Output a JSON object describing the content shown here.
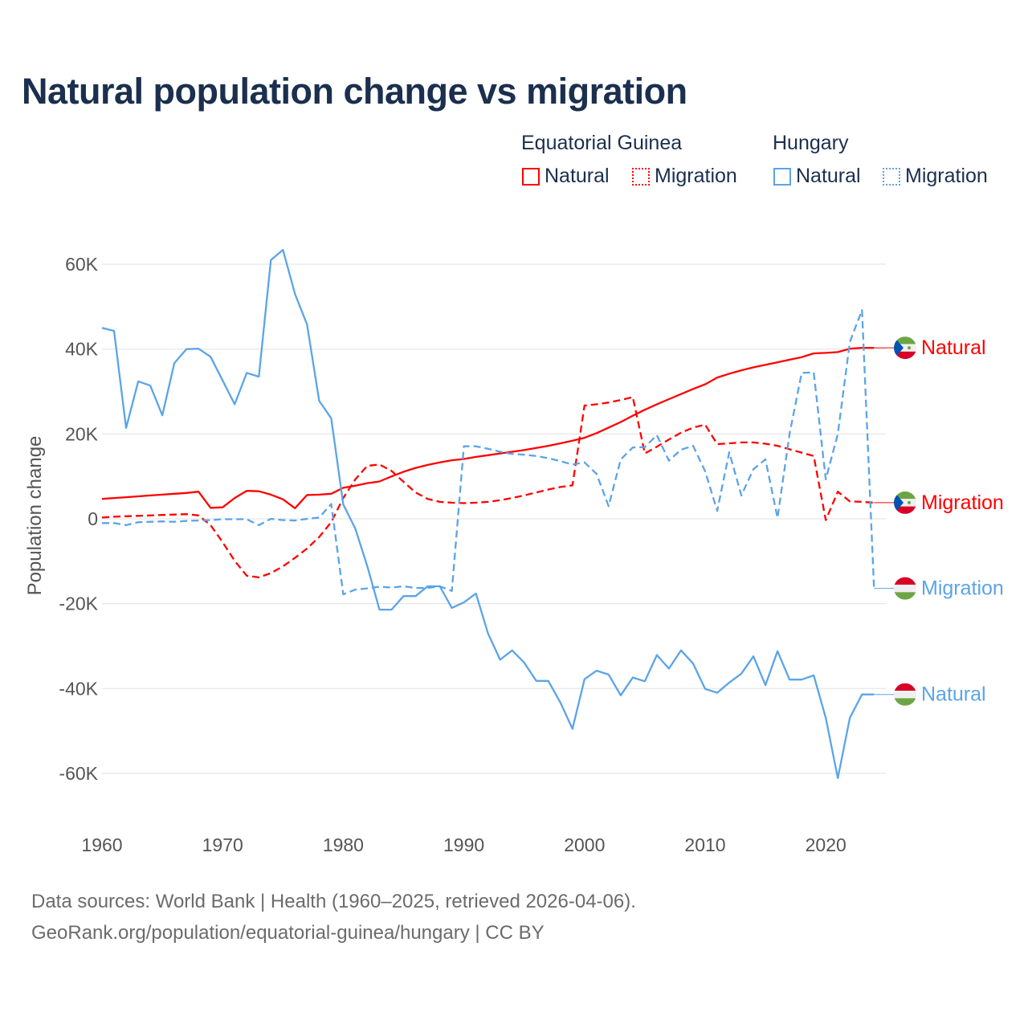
{
  "title": "Natural population change vs migration",
  "legend": {
    "groups": [
      {
        "country": "Equatorial Guinea",
        "items": [
          {
            "label": "Natural",
            "style": "solid",
            "color": "#ff0000"
          },
          {
            "label": "Migration",
            "style": "dotted",
            "color": "#ff0000"
          }
        ]
      },
      {
        "country": "Hungary",
        "items": [
          {
            "label": "Natural",
            "style": "solid",
            "color": "#5ba4e8"
          },
          {
            "label": "Migration",
            "style": "dotted",
            "color": "#5ba4e8"
          }
        ]
      }
    ]
  },
  "footer": {
    "line1": "Data sources: World Bank | Health (1960–2025, retrieved 2026-04-06).",
    "line2": "GeoRank.org/population/equatorial-guinea/hungary | CC BY"
  },
  "chart_data": {
    "type": "line",
    "title": "Natural population change vs migration",
    "xlabel": "",
    "ylabel": "Population change",
    "xlim": [
      1960,
      2025
    ],
    "ylim": [
      -70000,
      70000
    ],
    "x_ticks": [
      1960,
      1970,
      1980,
      1990,
      2000,
      2010,
      2020
    ],
    "x_tick_labels": [
      "1960",
      "1970",
      "1980",
      "1990",
      "2000",
      "2010",
      "2020"
    ],
    "y_ticks": [
      60000,
      40000,
      20000,
      0,
      -20000,
      -40000,
      -60000
    ],
    "y_tick_labels": [
      "60K",
      "40K",
      "20K",
      "0",
      "-20K",
      "-40K",
      "-60K"
    ],
    "grid": true,
    "legend_placement": "top-right",
    "x_start": 1960,
    "series": [
      {
        "name": "Equatorial Guinea Natural",
        "end_label": "Natural",
        "country": "equatorial-guinea",
        "color": "#ff0000",
        "dash": false,
        "values": [
          4.7,
          4.9,
          5.1,
          5.3,
          5.5,
          5.7,
          5.9,
          6.1,
          6.4,
          2.6,
          2.7,
          4.9,
          6.6,
          6.5,
          5.7,
          4.6,
          2.5,
          5.6,
          5.7,
          5.9,
          7.3,
          7.8,
          8.4,
          8.8,
          10.0,
          11.1,
          12.0,
          12.7,
          13.3,
          13.8,
          14.1,
          14.6,
          15.0,
          15.4,
          15.8,
          16.2,
          16.7,
          17.2,
          17.8,
          18.4,
          19.1,
          20.2,
          21.5,
          22.8,
          24.3,
          25.7,
          27.0,
          28.2,
          29.4,
          30.6,
          31.7,
          33.3,
          34.2,
          35.0,
          35.7,
          36.3,
          36.9,
          37.5,
          38.1,
          39.0,
          39.1,
          39.3,
          40.1,
          40.3,
          40.3
        ]
      },
      {
        "name": "Equatorial Guinea Migration",
        "end_label": "Migration",
        "country": "equatorial-guinea",
        "color": "#ff0000",
        "dash": true,
        "values": [
          0.3,
          0.5,
          0.6,
          0.7,
          0.8,
          0.9,
          1.0,
          1.1,
          0.8,
          -1.5,
          -5.5,
          -9.9,
          -13.4,
          -13.8,
          -12.8,
          -11.2,
          -9.2,
          -7.0,
          -4.3,
          -0.8,
          4.9,
          9.3,
          12.5,
          12.8,
          11.3,
          8.7,
          6.2,
          4.7,
          4.0,
          3.8,
          3.7,
          3.8,
          4.0,
          4.4,
          4.9,
          5.5,
          6.2,
          6.9,
          7.5,
          7.9,
          26.7,
          27.0,
          27.4,
          28.0,
          28.7,
          15.4,
          17.0,
          18.7,
          20.3,
          21.5,
          22.2,
          17.6,
          17.8,
          18.0,
          18.0,
          17.7,
          17.2,
          16.4,
          15.6,
          14.8,
          -0.3,
          6.4,
          4.1,
          4.0,
          3.8
        ]
      },
      {
        "name": "Hungary Migration",
        "end_label": "Migration",
        "country": "hungary",
        "color": "#5ba4e8",
        "dash": true,
        "values": [
          -1.0,
          -1.0,
          -1.5,
          -0.8,
          -0.7,
          -0.6,
          -0.7,
          -0.5,
          -0.4,
          -0.3,
          -0.1,
          -0.1,
          -0.1,
          -1.5,
          0.0,
          -0.3,
          -0.4,
          0.0,
          0.3,
          3.5,
          -17.8,
          -16.7,
          -16.4,
          -16.0,
          -16.2,
          -15.9,
          -16.3,
          -16.3,
          -15.9,
          -17.0,
          17.1,
          17.1,
          16.5,
          15.8,
          15.3,
          15.1,
          14.8,
          14.3,
          13.6,
          12.8,
          13.3,
          10.6,
          3.0,
          14.0,
          16.8,
          16.9,
          19.7,
          13.7,
          16.3,
          17.2,
          11.2,
          1.9,
          15.7,
          5.5,
          11.7,
          14.0,
          0.2,
          20.0,
          34.4,
          34.5,
          9.3,
          20.0,
          41.7,
          49.2,
          -16.4
        ]
      },
      {
        "name": "Hungary Natural",
        "end_label": "Natural",
        "country": "hungary",
        "color": "#5ba4e8",
        "dash": false,
        "values": [
          45.0,
          44.3,
          21.4,
          32.4,
          31.4,
          24.4,
          36.7,
          40.0,
          40.1,
          38.2,
          32.6,
          27.0,
          34.4,
          33.5,
          61.0,
          63.4,
          53.0,
          45.8,
          27.8,
          23.7,
          3.4,
          -2.3,
          -11.2,
          -21.4,
          -21.4,
          -18.2,
          -18.2,
          -15.9,
          -15.9,
          -21.0,
          -19.7,
          -17.6,
          -27.0,
          -33.2,
          -31.0,
          -33.9,
          -38.2,
          -38.2,
          -43.3,
          -49.5,
          -37.8,
          -35.8,
          -36.7,
          -41.6,
          -37.4,
          -38.3,
          -32.1,
          -35.3,
          -31.0,
          -34.1,
          -40.1,
          -41.0,
          -38.6,
          -36.5,
          -32.4,
          -39.2,
          -31.2,
          -37.9,
          -37.9,
          -36.9,
          -46.9,
          -61.1,
          -46.9,
          -41.4,
          -41.4
        ]
      }
    ],
    "value_unit": "thousands"
  }
}
